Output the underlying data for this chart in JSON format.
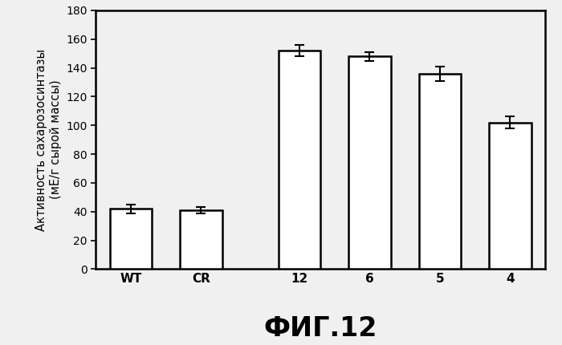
{
  "categories": [
    "WT",
    "CR",
    "12",
    "6",
    "5",
    "4"
  ],
  "values": [
    42,
    41,
    152,
    148,
    136,
    102
  ],
  "errors": [
    3,
    2,
    4,
    3,
    5,
    4
  ],
  "bar_color": "#ffffff",
  "bar_edgecolor": "#000000",
  "bar_linewidth": 1.8,
  "bar_width": 0.6,
  "ylabel_line1": "Активность сахарозосинтазы",
  "ylabel_line2": "(мЕ/г сырой массы)",
  "caption": "ФИГ.12",
  "ylim": [
    0,
    180
  ],
  "yticks": [
    0,
    20,
    40,
    60,
    80,
    100,
    120,
    140,
    160,
    180
  ],
  "figsize": [
    7.0,
    4.3
  ],
  "dpi": 100,
  "background_color": "#f0f0f0",
  "errorbar_capsize": 4,
  "errorbar_linewidth": 1.5,
  "errorbar_capthick": 1.5,
  "ylabel_fontsize": 10.5,
  "xtick_fontsize": 11,
  "ytick_fontsize": 10,
  "caption_fontsize": 24,
  "caption_fontweight": "bold",
  "spine_linewidth": 1.8,
  "x_positions": [
    0,
    1,
    2.4,
    3.4,
    4.4,
    5.4
  ]
}
